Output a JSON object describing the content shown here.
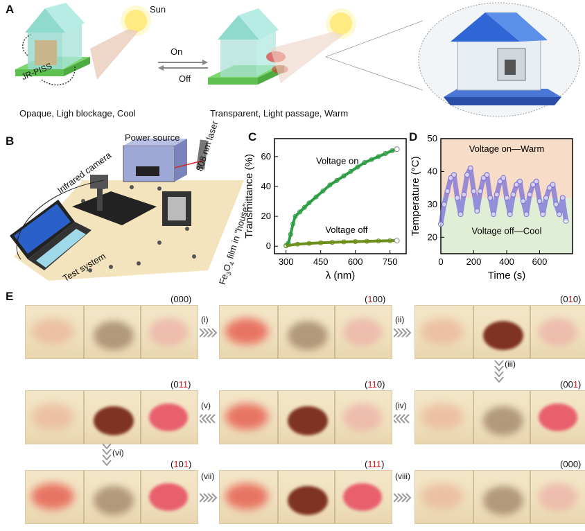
{
  "panelA": {
    "label": "A",
    "sun": "Sun",
    "jr": "JR-PISS",
    "on": "On",
    "off": "Off",
    "left_caption": "Opaque, Ligh blockage, Cool",
    "right_caption": "Transparent, Light passage, Warm"
  },
  "panelB": {
    "label": "B",
    "power": "Power source",
    "laser": "808 nm laser",
    "camera": "Infrared camera",
    "test": "Test system",
    "film_pre": "Fe",
    "film_sub1": "3",
    "film_mid": "O",
    "film_sub2": "4",
    "film_post": " film in \"house\""
  },
  "panelC": {
    "label": "C",
    "chart_data": {
      "type": "scatter",
      "xlabel": "λ (nm)",
      "ylabel": "Transmittance (%)",
      "xlim": [
        250,
        820
      ],
      "ylim": [
        -5,
        72
      ],
      "xticks": [
        300,
        450,
        600,
        750
      ],
      "yticks": [
        0,
        20,
        40,
        60
      ],
      "annotations": [
        "Voltage on",
        "Voltage off"
      ],
      "series": [
        {
          "color": "#2e9e44",
          "x": [
            300,
            310,
            320,
            330,
            340,
            360,
            380,
            400,
            430,
            460,
            490,
            520,
            550,
            580,
            610,
            640,
            670,
            700,
            730,
            760,
            780
          ],
          "y": [
            0.5,
            2,
            8,
            15,
            20,
            23,
            26,
            29,
            33,
            37,
            41,
            44,
            47,
            50,
            53,
            56,
            58,
            60,
            62,
            64,
            65
          ]
        },
        {
          "color": "#6b8f1a",
          "x": [
            300,
            350,
            400,
            450,
            500,
            550,
            600,
            650,
            700,
            750,
            780
          ],
          "y": [
            0.3,
            1.4,
            1.9,
            2.3,
            2.6,
            2.9,
            3.1,
            3.3,
            3.5,
            3.7,
            3.8
          ]
        }
      ]
    }
  },
  "panelD": {
    "label": "D",
    "chart_data": {
      "type": "line",
      "xlabel": "Time (s)",
      "ylabel": "Temperature (°C)",
      "xlim": [
        0,
        800
      ],
      "ylim": [
        15,
        50
      ],
      "xticks": [
        0,
        200,
        400,
        600
      ],
      "yticks": [
        20,
        30,
        40,
        50
      ],
      "annotations": [
        "Voltage on—Warm",
        "Voltage off—Cool"
      ],
      "series": [
        {
          "color": "#7a6fd8",
          "x": [
            0,
            20,
            40,
            60,
            80,
            100,
            120,
            140,
            160,
            180,
            200,
            220,
            240,
            260,
            280,
            300,
            320,
            340,
            360,
            380,
            400,
            420,
            440,
            460,
            480,
            500,
            520,
            540,
            560,
            580,
            600,
            620,
            640,
            660,
            680,
            700,
            720,
            740,
            760
          ],
          "y": [
            24,
            30,
            34,
            38,
            39,
            32,
            27,
            33,
            39,
            41,
            34,
            28,
            34,
            38,
            39,
            32,
            27,
            33,
            37,
            38,
            32,
            27,
            33,
            36,
            37,
            31,
            27,
            33,
            36,
            37,
            31,
            27,
            32,
            35,
            36,
            30,
            27,
            32,
            25
          ]
        }
      ]
    }
  },
  "panelE": {
    "label": "E",
    "states": [
      {
        "d": [
          "0",
          "0",
          "0"
        ],
        "red": [
          false,
          false,
          false
        ]
      },
      {
        "d": [
          "1",
          "0",
          "0"
        ],
        "red": [
          true,
          false,
          false
        ]
      },
      {
        "d": [
          "0",
          "1",
          "0"
        ],
        "red": [
          false,
          true,
          false
        ]
      },
      {
        "d": [
          "0",
          "0",
          "1"
        ],
        "red": [
          false,
          false,
          true
        ]
      },
      {
        "d": [
          "1",
          "1",
          "0"
        ],
        "red": [
          true,
          true,
          false
        ]
      },
      {
        "d": [
          "0",
          "1",
          "1"
        ],
        "red": [
          false,
          true,
          true
        ]
      },
      {
        "d": [
          "1",
          "0",
          "1"
        ],
        "red": [
          true,
          false,
          true
        ]
      },
      {
        "d": [
          "1",
          "1",
          "1"
        ],
        "red": [
          true,
          true,
          true
        ]
      },
      {
        "d": [
          "0",
          "0",
          "0"
        ],
        "red": [
          false,
          false,
          false
        ]
      }
    ],
    "steps": [
      "(i)",
      "(ii)",
      "(iii)",
      "(iv)",
      "(v)",
      "(vi)",
      "(vii)",
      "(viii)"
    ]
  }
}
